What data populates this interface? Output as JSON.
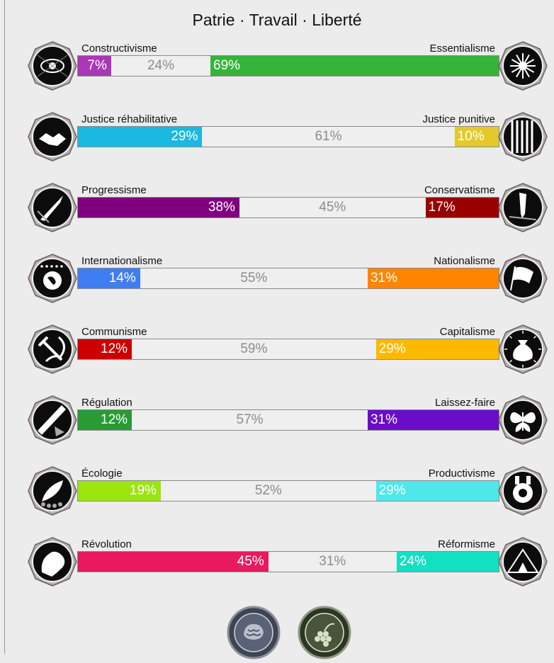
{
  "title": "Patrie · Travail · Liberté",
  "axes": [
    {
      "left_label": "Constructivisme",
      "right_label": "Essentialisme",
      "left_pct": "7%",
      "mid_pct": "24%",
      "right_pct": "69%",
      "left_value": 7,
      "mid_value": 24,
      "right_value": 69,
      "left_color": "#a937b6",
      "right_color": "#36b43a",
      "left_icon": "eye-icon",
      "right_icon": "flower-icon"
    },
    {
      "left_label": "Justice réhabilitative",
      "right_label": "Justice punitive",
      "left_pct": "29%",
      "mid_pct": "61%",
      "right_pct": "10%",
      "left_value": 29,
      "mid_value": 61,
      "right_value": 10,
      "left_color": "#1bb8e0",
      "right_color": "#e5c92a",
      "left_icon": "handshake-icon",
      "right_icon": "prison-bars-icon"
    },
    {
      "left_label": "Progressisme",
      "right_label": "Conservatisme",
      "left_pct": "38%",
      "mid_pct": "45%",
      "right_pct": "17%",
      "left_value": 38,
      "mid_value": 45,
      "right_value": 17,
      "left_color": "#800080",
      "right_color": "#990000",
      "left_icon": "rocket-icon",
      "right_icon": "quill-icon"
    },
    {
      "left_label": "Internationalisme",
      "right_label": "Nationalisme",
      "left_pct": "14%",
      "mid_pct": "55%",
      "right_pct": "31%",
      "left_value": 14,
      "mid_value": 55,
      "right_value": 31,
      "left_color": "#3f7df2",
      "right_color": "#ff8500",
      "left_icon": "globe-icon",
      "right_icon": "flag-icon"
    },
    {
      "left_label": "Communisme",
      "right_label": "Capitalisme",
      "left_pct": "12%",
      "mid_pct": "59%",
      "right_pct": "29%",
      "left_value": 12,
      "mid_value": 59,
      "right_value": 29,
      "left_color": "#cc0000",
      "right_color": "#ffb900",
      "left_icon": "hammer-sickle-icon",
      "right_icon": "money-bag-icon"
    },
    {
      "left_label": "Régulation",
      "right_label": "Laissez-faire",
      "left_pct": "12%",
      "mid_pct": "57%",
      "right_pct": "31%",
      "left_value": 12,
      "mid_value": 57,
      "right_value": 31,
      "left_color": "#289b37",
      "right_color": "#6a0dc8",
      "left_icon": "ruler-icon",
      "right_icon": "butterfly-icon"
    },
    {
      "left_label": "Écologie",
      "right_label": "Productivisme",
      "left_pct": "19%",
      "mid_pct": "52%",
      "right_pct": "29%",
      "left_value": 19,
      "mid_value": 52,
      "right_value": 29,
      "left_color": "#9ce50e",
      "right_color": "#4ee8ea",
      "left_icon": "plant-icon",
      "right_icon": "factory-gear-icon"
    },
    {
      "left_label": "Révolution",
      "right_label": "Réformisme",
      "left_pct": "45%",
      "mid_pct": "31%",
      "right_pct": "24%",
      "left_value": 45,
      "mid_value": 31,
      "right_value": 24,
      "left_color": "#e91960",
      "right_color": "#11e0c3",
      "left_icon": "fist-icon",
      "right_icon": "tent-icon"
    }
  ],
  "badges": [
    "brain-seal-icon",
    "grape-seal-icon"
  ]
}
